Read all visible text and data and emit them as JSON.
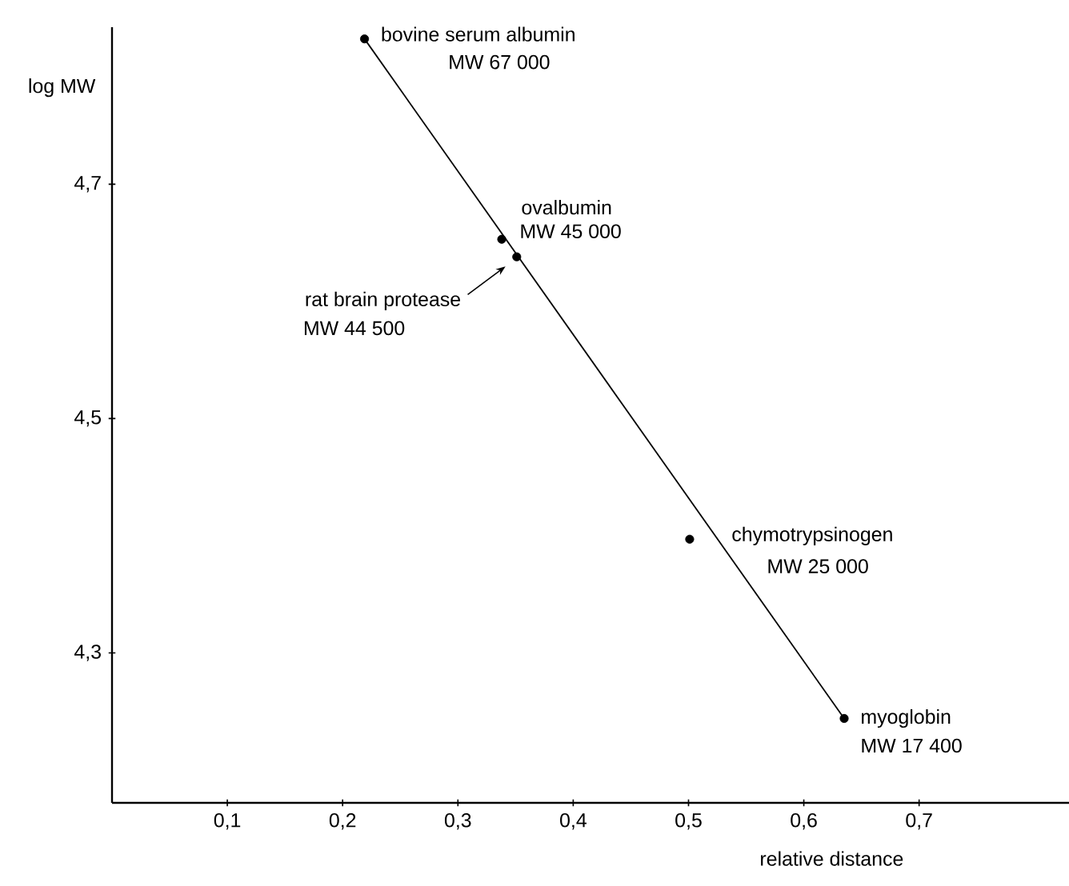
{
  "chart_data": {
    "type": "scatter",
    "xlabel": "relative distance",
    "ylabel": "log MW",
    "xlim": [
      0,
      0.83
    ],
    "ylim": [
      4.172,
      4.834
    ],
    "xticks": [
      {
        "value": 0.1,
        "label": "0,1"
      },
      {
        "value": 0.2,
        "label": "0,2"
      },
      {
        "value": 0.3,
        "label": "0,3"
      },
      {
        "value": 0.4,
        "label": "0,4"
      },
      {
        "value": 0.5,
        "label": "0,5"
      },
      {
        "value": 0.6,
        "label": "0,6"
      },
      {
        "value": 0.7,
        "label": "0,7"
      }
    ],
    "yticks": [
      {
        "value": 4.3,
        "label": "4,3"
      },
      {
        "value": 4.5,
        "label": "4,5"
      },
      {
        "value": 4.7,
        "label": "4,7"
      }
    ],
    "grid": false,
    "series": [
      {
        "type": "scatter",
        "color": "#000000",
        "marker": "circle",
        "x": [
          0.219,
          0.338,
          0.351,
          0.501,
          0.635
        ],
        "values": [
          4.824,
          4.653,
          4.638,
          4.397,
          4.244
        ]
      },
      {
        "type": "line",
        "color": "#000000",
        "marker": "none",
        "line_style": "solid",
        "x": [
          0.219,
          0.635
        ],
        "values": [
          4.824,
          4.244
        ]
      }
    ],
    "annotations": [
      {
        "text": "bovine serum albumin",
        "x": 0.219,
        "y": 4.824
      },
      "MW 67 000",
      {
        "text": "ovalbumin",
        "x": 0.338,
        "y": 4.653
      },
      {
        "text": "MW 45 000",
        "x": 0.338,
        "y": 4.653
      },
      "rat brain protease",
      "MW 44 500",
      {
        "text": "chymotrypsinogen",
        "x": 0.501,
        "y": 4.397
      },
      "MW 25 000",
      {
        "text": "myoglobin",
        "x": 0.635,
        "y": 4.244
      },
      {
        "text": "MW 17 400",
        "x": 0.635,
        "y": 4.244
      }
    ]
  }
}
